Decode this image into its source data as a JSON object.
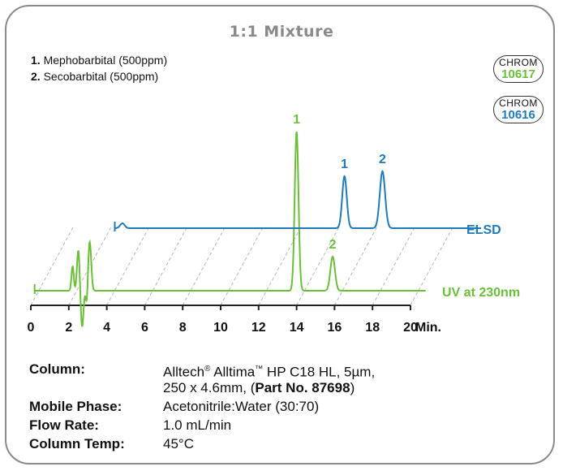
{
  "title": "1:1 Mixture",
  "compounds": [
    {
      "num": "1.",
      "name": "Mephobarbital (500ppm)"
    },
    {
      "num": "2.",
      "name": "Secobarbital (500ppm)"
    }
  ],
  "badges": [
    {
      "label": "CHROM",
      "number": "10617",
      "color": "#6abf3a"
    },
    {
      "label": "CHROM",
      "number": "10616",
      "color": "#1e7ab8"
    }
  ],
  "chart_data": {
    "type": "line",
    "x_unit": "Min.",
    "xlim": [
      0,
      20
    ],
    "x_ticks": [
      0,
      2,
      4,
      6,
      8,
      10,
      12,
      14,
      16,
      18,
      20
    ],
    "series": [
      {
        "name": "UV at 230nm",
        "color": "#6abf3a",
        "peaks": [
          {
            "rt": 2.2,
            "height": 30,
            "width": 0.06,
            "label": ""
          },
          {
            "rt": 2.5,
            "height": 50,
            "width": 0.07,
            "label": ""
          },
          {
            "rt": 2.7,
            "height": -45,
            "width": 0.07,
            "label": ""
          },
          {
            "rt": 3.1,
            "height": 60,
            "width": 0.08,
            "label": ""
          },
          {
            "rt": 2.95,
            "height": -20,
            "width": 0.05,
            "label": ""
          },
          {
            "rt": 14.0,
            "height": 196,
            "width": 0.1,
            "label": "1"
          },
          {
            "rt": 15.9,
            "height": 42,
            "width": 0.12,
            "label": "2"
          }
        ]
      },
      {
        "name": "ELSD",
        "color": "#1e7ab8",
        "peaks": [
          {
            "rt": 2.6,
            "height": 6,
            "width": 0.12,
            "label": ""
          },
          {
            "rt": 14.3,
            "height": 64,
            "width": 0.12,
            "label": "1"
          },
          {
            "rt": 16.3,
            "height": 70,
            "width": 0.14,
            "label": "2"
          }
        ]
      }
    ]
  },
  "conditions": [
    {
      "label": "Column:",
      "value_parts": [
        {
          "t": "Alltech",
          "b": false
        },
        {
          "t": "®",
          "b": false,
          "sup": true
        },
        {
          "t": " Alltima",
          "b": false
        },
        {
          "t": "™",
          "b": false,
          "sup": true
        },
        {
          "t": " HP C18 HL, 5µm,",
          "b": false
        }
      ]
    },
    {
      "label": "",
      "value_parts": [
        {
          "t": "250 x 4.6mm, (",
          "b": false
        },
        {
          "t": "Part No. 87698",
          "b": true
        },
        {
          "t": ")",
          "b": false
        }
      ]
    },
    {
      "label": "Mobile Phase:",
      "value_parts": [
        {
          "t": "Acetonitrile:Water (30:70)",
          "b": false
        }
      ]
    },
    {
      "label": "Flow Rate:",
      "value_parts": [
        {
          "t": "1.0 mL/min",
          "b": false
        }
      ]
    },
    {
      "label": "Column Temp:",
      "value_parts": [
        {
          "t": "45°C",
          "b": false
        }
      ]
    }
  ]
}
